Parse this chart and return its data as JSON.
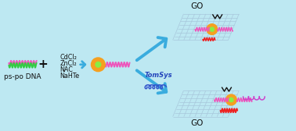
{
  "bg_color": "#bde8f2",
  "chemicals": [
    "CdCl₂",
    "ZnCl₂",
    "NAC",
    "NaHTe"
  ],
  "label_pspo": "ps-po DNA",
  "label_go_top": "GO",
  "label_go_bot": "GO",
  "label_tomsys": "TomSys",
  "arrow_color": "#3aacde",
  "qd_color": "#f5a020",
  "qd_glow": "#88ee44",
  "pink": "#ee55bb",
  "green": "#33cc44",
  "red": "#ee2222",
  "black": "#111111",
  "purple_coil": "#cc44cc",
  "blue_coil": "#3355cc",
  "text_color": "#111111",
  "sheet_color": "#a8c8dc",
  "fs_label": 6.5,
  "fs_chem": 5.8,
  "fs_go": 7.5
}
